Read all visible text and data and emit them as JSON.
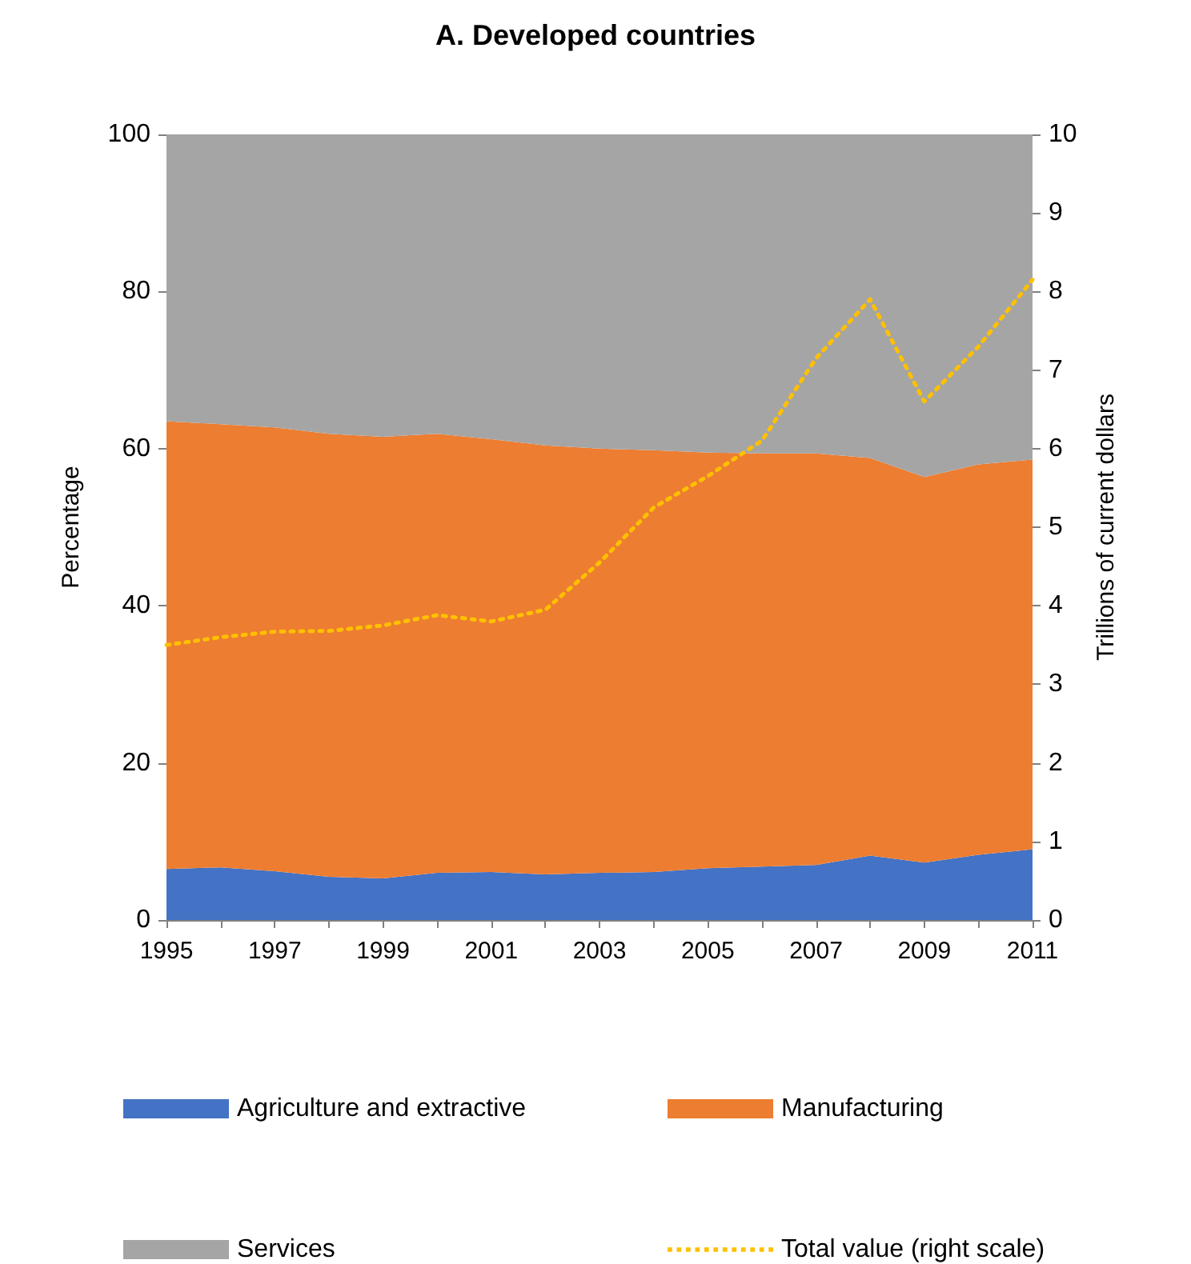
{
  "chart_data": {
    "type": "area",
    "title": "A. Developed countries",
    "ylabel": "Percentage",
    "y2label": "Trillions of current dollars",
    "categories": [
      "1995",
      null,
      "1997",
      null,
      "1999",
      null,
      "2001",
      null,
      "2003",
      null,
      "2005",
      null,
      "2007",
      null,
      "2009",
      null,
      "2011"
    ],
    "stacked": true,
    "series": [
      {
        "name": "Agriculture and extractive",
        "color": "#4472c4",
        "values": [
          6.5,
          6.7,
          6.2,
          5.5,
          5.3,
          6.0,
          6.1,
          5.8,
          6.0,
          6.1,
          6.6,
          6.8,
          7.0,
          8.2,
          7.3,
          8.3,
          9.0
        ]
      },
      {
        "name": "Manufacturing",
        "color": "#ed7d31",
        "values": [
          57.0,
          56.4,
          56.5,
          56.4,
          56.2,
          55.9,
          55.1,
          54.6,
          54.0,
          53.7,
          52.9,
          52.6,
          52.4,
          50.6,
          49.1,
          49.7,
          49.6
        ]
      },
      {
        "name": "Services",
        "color": "#a5a5a5",
        "values": [
          36.5,
          36.9,
          37.3,
          38.1,
          38.5,
          38.1,
          38.8,
          39.6,
          40.0,
          40.2,
          40.5,
          40.6,
          40.6,
          41.2,
          43.6,
          42.0,
          41.4
        ]
      },
      {
        "name": "Total value (right scale)",
        "type": "line",
        "axis": "y2",
        "line_style": "dotted",
        "color": "#ffc000",
        "values": [
          3.5,
          3.6,
          3.67,
          3.68,
          3.75,
          3.88,
          3.8,
          3.95,
          4.55,
          5.25,
          5.65,
          6.1,
          7.15,
          7.9,
          6.6,
          7.3,
          8.15
        ]
      }
    ],
    "ylim": [
      0,
      100
    ],
    "yticks": [
      0,
      20,
      40,
      60,
      80,
      100
    ],
    "y2lim": [
      0,
      10
    ],
    "y2ticks": [
      0,
      1,
      2,
      3,
      4,
      5,
      6,
      7,
      8,
      9,
      10
    ],
    "grid": false,
    "legend": "bottom",
    "marker": "none"
  }
}
